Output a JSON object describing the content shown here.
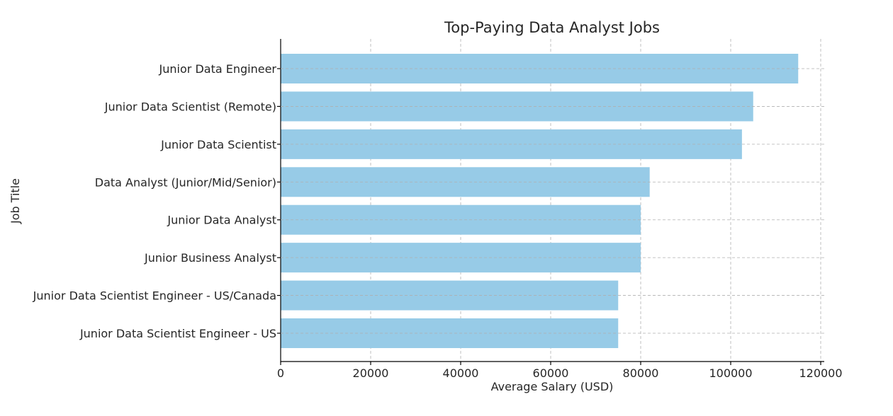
{
  "chart_data": {
    "type": "bar",
    "orientation": "horizontal",
    "title": "Top-Paying Data Analyst Jobs",
    "xlabel": "Average Salary (USD)",
    "ylabel": "Job Title",
    "categories": [
      "Junior Data Engineer",
      "Junior Data Scientist (Remote)",
      "Junior Data Scientist",
      "Data Analyst (Junior/Mid/Senior)",
      "Junior Data Analyst",
      "Junior Business Analyst",
      "Junior Data Scientist Engineer - US/Canada",
      "Junior Data Scientist Engineer - US"
    ],
    "values": [
      115000,
      105000,
      102500,
      82000,
      80000,
      80000,
      75000,
      75000
    ],
    "xlim": [
      0,
      120000
    ],
    "xticks": [
      0,
      20000,
      40000,
      60000,
      80000,
      100000,
      120000
    ],
    "xtick_labels": [
      "0",
      "20000",
      "40000",
      "60000",
      "80000",
      "100000",
      "120000"
    ],
    "grid": true,
    "bar_color": "#97cbe7"
  }
}
